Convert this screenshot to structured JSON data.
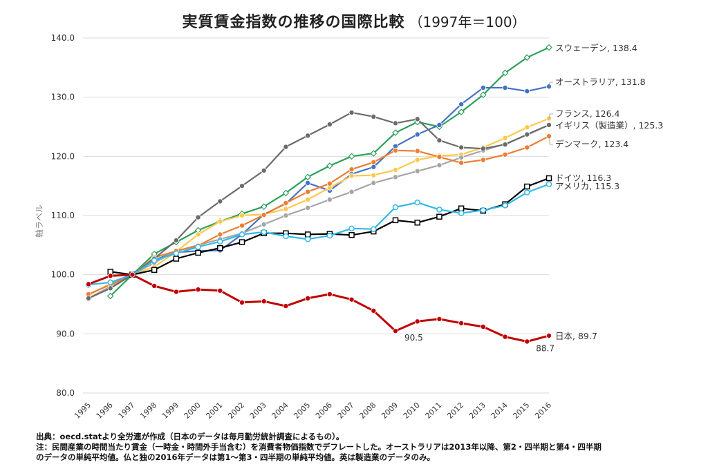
{
  "title": "実質賃金指数の推移の国際比較",
  "subtitle": "（1997年＝100）",
  "notes": [
    "出典：oecd.statより全労連が作成（日本のデータは毎月勤労統計調査によるもの）。",
    "注：民間産業の時間当たり賃金（一時金・時間外手当含む）を消費者物価指数でデフレートした。オーストラリアは2013年以降、第2・四半期と第4・四半期",
    "のデータの単純平均値。仏と独の2016年データは第1～第3・四半期の単純平均値。英は製造業のデータのみ。"
  ],
  "chart_data": {
    "type": "line",
    "title": "実質賃金指数の推移の国際比較（1997年＝100）",
    "xlabel": "",
    "ylabel": "軸ラベル",
    "ylim": [
      80,
      140
    ],
    "yticks": [
      "80.0",
      "90.0",
      "100.0",
      "110.0",
      "120.0",
      "130.0",
      "140.0"
    ],
    "grid": true,
    "legend": "end-labels",
    "x": [
      "1995",
      "1996",
      "1997",
      "1998",
      "1999",
      "2000",
      "2001",
      "2002",
      "2003",
      "2004",
      "2005",
      "2006",
      "2007",
      "2008",
      "2009",
      "2010",
      "2011",
      "2012",
      "2013",
      "2014",
      "2015",
      "2016"
    ],
    "series": [
      {
        "name": "スウェーデン",
        "label": "スウェーデン, 138.4",
        "color": "#2ca05a",
        "marker": "diamond",
        "values": [
          null,
          96.4,
          100.0,
          103.5,
          105.5,
          107.5,
          109.0,
          110.3,
          111.5,
          113.8,
          116.5,
          118.4,
          120.0,
          120.5,
          124.0,
          125.8,
          125.0,
          127.5,
          130.4,
          134.1,
          136.7,
          138.4
        ]
      },
      {
        "name": "オーストラリア",
        "label": "オーストラリア, 131.8",
        "color": "#4472c4",
        "marker": "circle",
        "values": [
          null,
          null,
          100.0,
          102.5,
          103.8,
          104.0,
          104.1,
          106.8,
          110.2,
          112.0,
          115.5,
          114.2,
          117.0,
          118.2,
          121.7,
          123.7,
          125.3,
          128.8,
          131.6,
          131.6,
          131.0,
          131.8
        ]
      },
      {
        "name": "フランス",
        "label": "フランス, 126.4",
        "color": "#ffc84b",
        "marker": "circle",
        "values": [
          96.5,
          98.5,
          100.0,
          101.3,
          103.9,
          106.8,
          109.0,
          110.0,
          110.2,
          111.1,
          112.7,
          114.7,
          116.7,
          116.8,
          117.7,
          119.4,
          120.1,
          120.3,
          121.5,
          123.1,
          124.9,
          126.4
        ]
      },
      {
        "name": "イギリス（製造業）",
        "label": "イギリス（製造業）, 125.3",
        "color": "#a5a5a5",
        "marker": "circle",
        "values": [
          96.0,
          98.0,
          100.0,
          102.0,
          104.0,
          105.0,
          106.0,
          107.0,
          108.5,
          110.0,
          111.3,
          112.7,
          114.0,
          115.5,
          116.5,
          117.5,
          118.5,
          119.8,
          121.0,
          122.1,
          123.6,
          125.3
        ]
      },
      {
        "name": "デンマーク",
        "label": "デンマーク, 123.4",
        "color": "#ed7d31",
        "marker": "circle",
        "values": [
          96.7,
          98.3,
          100.0,
          102.9,
          104.0,
          104.9,
          106.8,
          108.3,
          110.1,
          112.1,
          114.0,
          115.4,
          117.8,
          119.0,
          121.0,
          120.9,
          119.9,
          118.9,
          119.4,
          120.3,
          121.5,
          123.4
        ]
      },
      {
        "name": "",
        "label": "",
        "color": "#6b6b6b",
        "marker": "circle",
        "values": [
          96.0,
          97.7,
          100.0,
          102.7,
          105.8,
          109.7,
          112.4,
          115.0,
          117.6,
          121.6,
          123.5,
          125.4,
          127.4,
          126.7,
          125.6,
          126.3,
          122.7,
          121.5,
          121.3,
          122.0,
          123.7,
          125.3
        ]
      },
      {
        "name": "ドイツ",
        "label": "ドイツ, 116.3",
        "color": "#000000",
        "marker": "square",
        "values": [
          null,
          100.5,
          100.0,
          100.8,
          102.7,
          103.7,
          104.5,
          105.5,
          107.0,
          107.0,
          106.8,
          106.9,
          106.7,
          107.3,
          109.2,
          108.8,
          109.8,
          111.2,
          110.8,
          111.9,
          114.9,
          116.3
        ]
      },
      {
        "name": "アメリカ",
        "label": "アメリカ, 115.3",
        "color": "#30b9e8",
        "marker": "circle-open",
        "values": [
          98.3,
          98.7,
          100.0,
          102.4,
          103.6,
          104.7,
          105.6,
          106.8,
          107.2,
          106.5,
          106.0,
          106.6,
          107.8,
          107.7,
          111.4,
          112.2,
          111.0,
          110.4,
          110.9,
          111.7,
          113.9,
          115.3
        ]
      },
      {
        "name": "日本",
        "label": "日本, 89.7",
        "color": "#c00000",
        "marker": "circle",
        "values": [
          98.4,
          99.8,
          100.0,
          98.1,
          97.1,
          97.5,
          97.3,
          95.3,
          95.5,
          94.7,
          96.0,
          96.7,
          95.8,
          93.9,
          90.5,
          92.1,
          92.5,
          91.8,
          91.2,
          89.5,
          88.7,
          89.7
        ]
      }
    ],
    "annotations": [
      {
        "text": "90.5",
        "x": "2009",
        "y": 90.5
      },
      {
        "text": "88.7",
        "x": "2015",
        "y": 88.7
      }
    ]
  }
}
